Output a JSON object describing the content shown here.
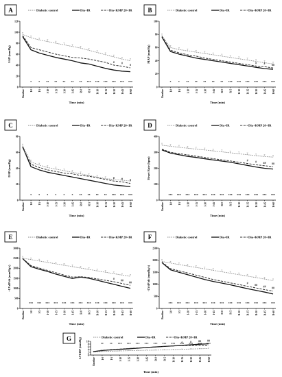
{
  "figure": {
    "legend": [
      "Diabetic control",
      "Dia+IR",
      "Dia+KMP 20+IR"
    ],
    "xlabel": "Time (min)",
    "x_categories": [
      "Baseline",
      "I-0",
      "I-5",
      "I-10",
      "I-15",
      "I-30",
      "I-45",
      "R-0",
      "R-5",
      "R-10",
      "R-15",
      "R-30",
      "R-45",
      "R-60"
    ],
    "colors": {
      "diabetic_control": "#8a8a8a",
      "dia_ir": "#111111",
      "dia_kmp": "#333333"
    }
  },
  "chart_data": [
    {
      "type": "line",
      "panel": "A",
      "ylabel": "SAP (mmHg)",
      "ylim": [
        0,
        120
      ],
      "yticks": [
        0,
        20,
        40,
        60,
        80,
        100,
        120
      ],
      "categories": [
        "Baseline",
        "I-0",
        "I-5",
        "I-10",
        "I-15",
        "I-30",
        "I-45",
        "R-0",
        "R-5",
        "R-10",
        "R-15",
        "R-30",
        "R-45",
        "R-60"
      ],
      "series": [
        {
          "name": "Diabetic control",
          "values": [
            96,
            90,
            86,
            83,
            80,
            77,
            74,
            71,
            67,
            63,
            59,
            55,
            51,
            48
          ]
        },
        {
          "name": "Dia+IR",
          "values": [
            92,
            68,
            62,
            58,
            54,
            51,
            48,
            44,
            42,
            38,
            34,
            31,
            29,
            28
          ]
        },
        {
          "name": "Dia+KMP 20+IR",
          "values": [
            94,
            72,
            68,
            64,
            60,
            57,
            54,
            53,
            51,
            48,
            45,
            40,
            38,
            35
          ]
        }
      ],
      "sig_bottom": [
        "*",
        "*",
        "**",
        "**",
        "**",
        "**",
        "**",
        "***",
        "***",
        "***",
        "***",
        "***",
        "***"
      ],
      "sig_upper": {
        "11": "#",
        "12": "#",
        "13": "#"
      }
    },
    {
      "type": "line",
      "panel": "B",
      "ylabel": "MAP (mmHg)",
      "ylim": [
        0,
        100
      ],
      "yticks": [
        0,
        20,
        40,
        60,
        80,
        100
      ],
      "categories": [
        "Baseline",
        "I-0",
        "I-5",
        "I-10",
        "I-15",
        "I-30",
        "I-45",
        "R-0",
        "R-5",
        "R-10",
        "R-15",
        "R-30",
        "R-45",
        "R-60"
      ],
      "series": [
        {
          "name": "Diabetic control",
          "values": [
            78,
            60,
            57,
            55,
            53,
            51,
            49,
            47,
            45,
            43,
            41,
            39,
            37,
            35
          ]
        },
        {
          "name": "Dia+IR",
          "values": [
            76,
            54,
            50,
            47,
            44,
            42,
            40,
            38,
            36,
            34,
            32,
            30,
            28,
            27
          ]
        },
        {
          "name": "Dia+KMP 20+IR",
          "values": [
            77,
            56,
            52,
            49,
            47,
            44,
            42,
            40,
            38,
            36,
            34,
            32,
            31,
            29
          ]
        }
      ],
      "sig_bottom": [
        "*",
        "*",
        "**",
        "**",
        "**",
        "**",
        "**",
        "***",
        "***",
        "***",
        "***",
        "***",
        "***"
      ],
      "sig_upper": {
        "11": "#",
        "12": "#",
        "13": "##"
      }
    },
    {
      "type": "line",
      "panel": "C",
      "ylabel": "DAP (mmHg)",
      "ylim": [
        0,
        80
      ],
      "yticks": [
        0,
        20,
        40,
        60,
        80
      ],
      "categories": [
        "Baseline",
        "I-0",
        "I-5",
        "I-10",
        "I-15",
        "I-30",
        "I-45",
        "R-0",
        "R-5",
        "R-10",
        "R-15",
        "R-30",
        "R-45",
        "R-60"
      ],
      "series": [
        {
          "name": "Diabetic control",
          "values": [
            68,
            48,
            44,
            41,
            39,
            37,
            35,
            33,
            31,
            29,
            27,
            26,
            25,
            24
          ]
        },
        {
          "name": "Dia+IR",
          "values": [
            67,
            42,
            38,
            35,
            33,
            31,
            29,
            27,
            25,
            23,
            21,
            19,
            18,
            17
          ]
        },
        {
          "name": "Dia+KMP 20+IR",
          "values": [
            66,
            45,
            41,
            38,
            36,
            34,
            33,
            31,
            30,
            28,
            26,
            24,
            23,
            21
          ]
        }
      ],
      "sig_bottom": [
        "*",
        "*",
        "*",
        "*",
        "*",
        "*",
        "**",
        "**",
        "**",
        "**",
        "***",
        "***",
        "***"
      ],
      "sig_upper": {
        "11": "#",
        "12": "#",
        "13": "#"
      }
    },
    {
      "type": "line",
      "panel": "D",
      "ylabel": "Heart Rate (bpm)",
      "ylim": [
        0,
        400
      ],
      "yticks": [
        0,
        100,
        200,
        300,
        400
      ],
      "categories": [
        "Baseline",
        "I-0",
        "I-5",
        "I-10",
        "I-15",
        "I-30",
        "I-45",
        "R-0",
        "R-5",
        "R-10",
        "R-15",
        "R-30",
        "R-45",
        "R-60"
      ],
      "series": [
        {
          "name": "Diabetic control",
          "values": [
            345,
            338,
            332,
            326,
            320,
            315,
            309,
            303,
            297,
            291,
            285,
            279,
            274,
            270
          ]
        },
        {
          "name": "Dia+IR",
          "values": [
            315,
            295,
            285,
            275,
            268,
            260,
            252,
            245,
            238,
            228,
            218,
            208,
            200,
            195
          ]
        },
        {
          "name": "Dia+KMP 20+IR",
          "values": [
            320,
            300,
            292,
            284,
            276,
            268,
            260,
            253,
            246,
            238,
            230,
            222,
            216,
            210
          ]
        }
      ],
      "sig_bottom": [
        "***",
        "***",
        "***",
        "***",
        "***",
        "***",
        "***",
        "***",
        "***",
        "***",
        "***",
        "***",
        "***"
      ],
      "sig_upper": {
        "10": "#",
        "11": "#",
        "12": "##",
        "13": "##"
      }
    },
    {
      "type": "line",
      "panel": "E",
      "ylabel": "+LVdP/dt (mmHg/s)",
      "ylim": [
        0,
        3000
      ],
      "yticks": [
        0,
        500,
        1000,
        1500,
        2000,
        2500,
        3000
      ],
      "categories": [
        "Baseline",
        "I-0",
        "I-5",
        "I-10",
        "I-15",
        "I-30",
        "I-45",
        "R-0",
        "R-5",
        "R-10",
        "R-15",
        "R-30",
        "R-45",
        "R-60"
      ],
      "series": [
        {
          "name": "Diabetic control",
          "values": [
            2500,
            2430,
            2360,
            2290,
            2220,
            2150,
            2080,
            2010,
            1940,
            1870,
            1800,
            1730,
            1660,
            1600
          ]
        },
        {
          "name": "Dia+IR",
          "values": [
            2480,
            2080,
            1950,
            1840,
            1710,
            1600,
            1490,
            1560,
            1500,
            1400,
            1300,
            1200,
            1100,
            1000
          ]
        },
        {
          "name": "Dia+KMP 20+IR",
          "values": [
            2490,
            2130,
            2010,
            1890,
            1780,
            1660,
            1560,
            1580,
            1540,
            1470,
            1400,
            1330,
            1240,
            1150
          ]
        }
      ],
      "sig_bottom": [
        "***",
        "***",
        "***",
        "***",
        "***",
        "***",
        "***",
        "***",
        "***",
        "***",
        "***",
        "***",
        "***"
      ],
      "sig_upper": {
        "11": "#",
        "12": "##",
        "13": "##"
      }
    },
    {
      "type": "line",
      "panel": "F",
      "ylabel": "-LVdP/dt (mmHg/s)",
      "ylim": [
        0,
        2500
      ],
      "yticks": [
        0,
        500,
        1000,
        1500,
        2000,
        2500
      ],
      "categories": [
        "Baseline",
        "I-0",
        "I-5",
        "I-10",
        "I-15",
        "I-30",
        "I-45",
        "R-0",
        "R-5",
        "R-10",
        "R-15",
        "R-30",
        "R-45",
        "R-60"
      ],
      "series": [
        {
          "name": "Diabetic control",
          "values": [
            1950,
            1880,
            1820,
            1760,
            1700,
            1640,
            1580,
            1520,
            1460,
            1400,
            1340,
            1280,
            1220,
            1150
          ]
        },
        {
          "name": "Dia+IR",
          "values": [
            1900,
            1600,
            1500,
            1400,
            1300,
            1200,
            1120,
            1050,
            980,
            900,
            820,
            750,
            680,
            600
          ]
        },
        {
          "name": "Dia+KMP 20+IR",
          "values": [
            1920,
            1650,
            1560,
            1470,
            1380,
            1290,
            1200,
            1130,
            1060,
            990,
            920,
            850,
            780,
            720
          ]
        }
      ],
      "sig_bottom": [
        "***",
        "***",
        "***",
        "***",
        "***",
        "***",
        "***",
        "***",
        "***",
        "***",
        "***",
        "***",
        "***"
      ],
      "sig_upper": {
        "10": "#",
        "11": "##",
        "12": "##",
        "13": "##"
      }
    },
    {
      "type": "line",
      "panel": "G",
      "ylabel": "LVEDP (mmHg)",
      "ylim": [
        0,
        10
      ],
      "yticks": [
        0,
        2,
        4,
        6,
        8,
        10
      ],
      "categories": [
        "Baseline",
        "I-0",
        "I-5",
        "I-10",
        "I-15",
        "I-30",
        "I-45",
        "R-0",
        "R-5",
        "R-10",
        "R-15",
        "R-30",
        "R-45",
        "R-60"
      ],
      "series": [
        {
          "name": "Diabetic control",
          "values": [
            2.3,
            2.6,
            2.8,
            3.0,
            3.2,
            3.3,
            3.5,
            3.6,
            3.8,
            4.0,
            4.2,
            4.4,
            4.6,
            4.8
          ]
        },
        {
          "name": "Dia+IR",
          "values": [
            2.5,
            3.3,
            3.8,
            4.2,
            4.6,
            5.0,
            5.5,
            5.9,
            6.3,
            6.7,
            7.1,
            7.5,
            7.9,
            8.2
          ]
        },
        {
          "name": "Dia+KMP 20+IR",
          "values": [
            2.6,
            3.5,
            4.0,
            4.4,
            4.8,
            5.2,
            5.6,
            6.0,
            6.3,
            6.6,
            6.9,
            7.0,
            6.9,
            6.8
          ]
        }
      ],
      "sig_top": [
        "**",
        "**",
        "***",
        "***",
        "***",
        "***",
        "***",
        "***",
        "***",
        "***",
        "***",
        "***",
        "***"
      ],
      "sig_upper": {
        "10": "#",
        "11": "#",
        "12": "##",
        "13": "##"
      }
    }
  ]
}
